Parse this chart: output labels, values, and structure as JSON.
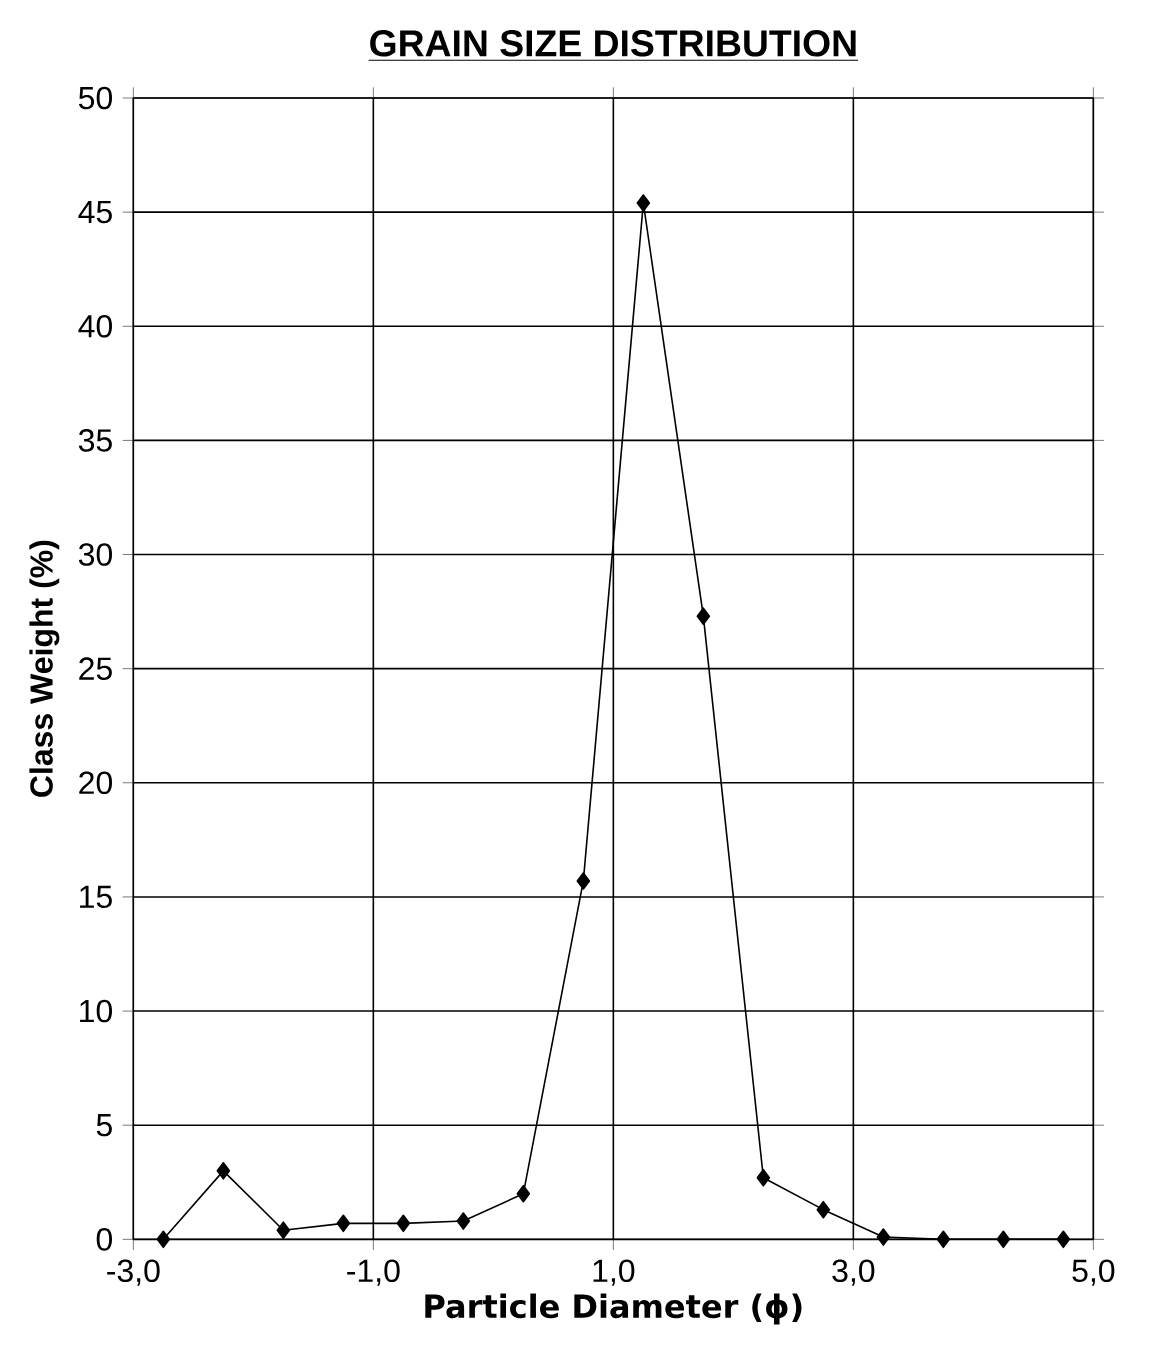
{
  "chart_data": {
    "type": "line",
    "title": "GRAIN SIZE DISTRIBUTION",
    "xlabel": "Particle Diameter (ϕ)",
    "ylabel": "Class Weight (%)",
    "x": [
      -2.75,
      -2.25,
      -1.75,
      -1.25,
      -0.75,
      -0.25,
      0.25,
      0.75,
      1.25,
      1.75,
      2.25,
      2.75,
      3.25,
      3.75,
      4.25,
      4.75
    ],
    "series": [
      {
        "color": "#000000",
        "values": [
          0,
          3.0,
          0.4,
          0.7,
          0.7,
          0.8,
          2.0,
          15.7,
          45.4,
          27.3,
          2.7,
          1.3,
          0.1,
          0,
          0,
          0
        ]
      }
    ],
    "xlim": [
      -3,
      5
    ],
    "ylim": [
      0,
      50
    ],
    "xticks": [
      {
        "value": -3,
        "label": "-3,0"
      },
      {
        "value": -1,
        "label": "-1,0"
      },
      {
        "value": 1,
        "label": "1,0"
      },
      {
        "value": 3,
        "label": "3,0"
      },
      {
        "value": 5,
        "label": "5,0"
      }
    ],
    "yticks": [
      0,
      5,
      10,
      15,
      20,
      25,
      30,
      35,
      40,
      45,
      50
    ],
    "grid": true,
    "marker": "diamond",
    "line_style": "solid"
  }
}
